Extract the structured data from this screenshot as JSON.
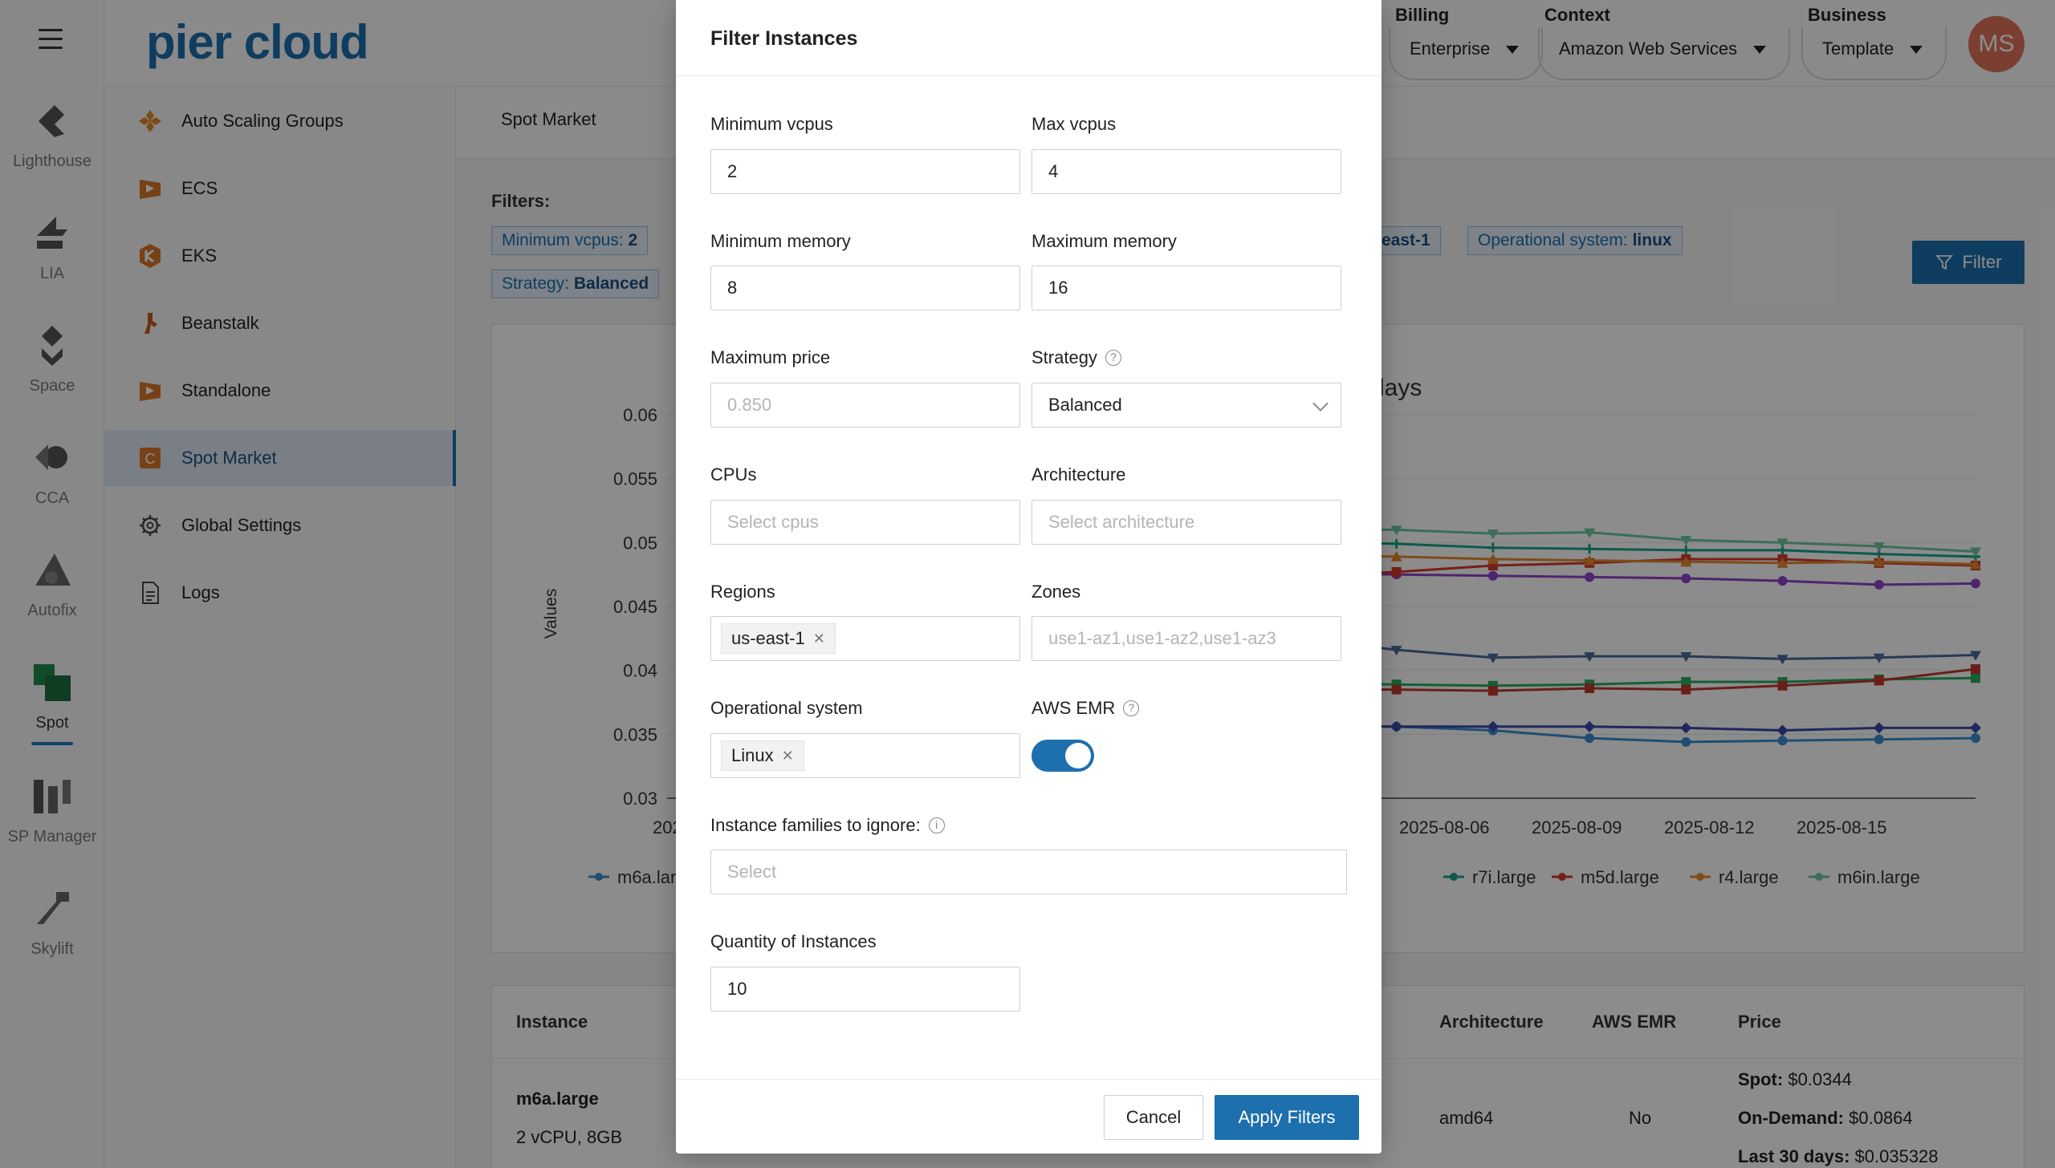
{
  "header": {
    "logo": "pier cloud",
    "billing": {
      "label": "Billing",
      "value": "Enterprise"
    },
    "context": {
      "label": "Context",
      "value": "Amazon Web Services"
    },
    "business": {
      "label": "Business",
      "value": "Template"
    },
    "avatar": "MS"
  },
  "rail": {
    "items": [
      {
        "label": "Lighthouse"
      },
      {
        "label": "LIA"
      },
      {
        "label": "Space"
      },
      {
        "label": "CCA"
      },
      {
        "label": "Autofix"
      },
      {
        "label": "Spot"
      },
      {
        "label": "SP Manager"
      },
      {
        "label": "Skylift"
      }
    ]
  },
  "sidebar": {
    "items": [
      {
        "label": "Auto Scaling Groups"
      },
      {
        "label": "ECS"
      },
      {
        "label": "EKS"
      },
      {
        "label": "Beanstalk"
      },
      {
        "label": "Standalone"
      },
      {
        "label": "Spot Market"
      },
      {
        "label": "Global Settings"
      },
      {
        "label": "Logs"
      }
    ]
  },
  "main": {
    "tab": "Spot Market",
    "filters_label": "Filters:",
    "tags": [
      {
        "key": "Minimum vcpus:",
        "value": "2"
      },
      {
        "key": "",
        "value": "east-1"
      },
      {
        "key": "Operational system:",
        "value": "linux"
      },
      {
        "key": "Strategy:",
        "value": "Balanced"
      }
    ],
    "filter_button": "Filter",
    "chart_title_fragment": "days",
    "table": {
      "headers": [
        "Instance",
        "Architecture",
        "AWS EMR",
        "Price"
      ],
      "row": {
        "instance": "m6a.large",
        "spec": "2 vCPU, 8GB",
        "architecture": "amd64",
        "emr": "No",
        "spot_label": "Spot:",
        "spot_value": "$0.0344",
        "ondemand_label": "On-Demand:",
        "ondemand_value": "$0.0864",
        "last30_label": "Last 30 days:",
        "last30_value": "$0.035328"
      }
    }
  },
  "chart_data": {
    "type": "line",
    "title": "",
    "ylabel": "Values",
    "ylim": [
      0.03,
      0.06
    ],
    "yticks": [
      "0.06",
      "0.055",
      "0.05",
      "0.045",
      "0.04",
      "0.035",
      "0.03"
    ],
    "visible_x_ticks": [
      "2025-0",
      "2025-08-06",
      "2025-08-09",
      "2025-08-12",
      "2025-08-15"
    ],
    "x": [
      "2025-08-04",
      "2025-08-05",
      "2025-08-06",
      "2025-08-07",
      "2025-08-08",
      "2025-08-09",
      "2025-08-10",
      "2025-08-11",
      "2025-08-12",
      "2025-08-13",
      "2025-08-14",
      "2025-08-15",
      "2025-08-16",
      "2025-08-17"
    ],
    "series": [
      {
        "name": "m6a.lar",
        "color": "#3a8fd0",
        "marker": "circle",
        "values": [
          0.0362,
          0.0358,
          0.0357,
          0.0357,
          0.0356,
          0.0356,
          0.0357,
          0.0356,
          0.0353,
          0.0347,
          0.0344,
          0.0345,
          0.0346,
          0.0347
        ]
      },
      {
        "name": "",
        "color": "#3949ab",
        "marker": "diamond",
        "values": [
          0.0355,
          0.0354,
          0.0355,
          0.0356,
          0.0357,
          0.0357,
          0.0356,
          0.0356,
          0.0356,
          0.0356,
          0.0355,
          0.0353,
          0.0355,
          0.0355
        ]
      },
      {
        "name": "",
        "color": "#4a6a9a",
        "marker": "triangle-down",
        "values": [
          0.0423,
          0.0422,
          0.0421,
          0.042,
          0.0424,
          0.0423,
          0.0425,
          0.0416,
          0.041,
          0.0411,
          0.0411,
          0.0409,
          0.041,
          0.0412
        ]
      },
      {
        "name": "",
        "color": "#8e44c9",
        "marker": "circle",
        "values": [
          0.0502,
          0.0501,
          0.0499,
          0.0492,
          0.0486,
          0.0477,
          0.0476,
          0.0475,
          0.0474,
          0.0473,
          0.0472,
          0.047,
          0.0467,
          0.0468
        ]
      },
      {
        "name": "r7i.large",
        "color": "#17a589",
        "marker": "plus",
        "values": [
          0.0512,
          0.0501,
          0.05,
          0.0505,
          0.0507,
          0.0505,
          0.0501,
          0.0499,
          0.0496,
          0.0495,
          0.0494,
          0.0494,
          0.0491,
          0.0489
        ]
      },
      {
        "name": "m5d.large",
        "color": "#d63a2f",
        "marker": "square",
        "values": [
          0.0464,
          0.0465,
          0.0465,
          0.0466,
          0.0467,
          0.0472,
          0.0474,
          0.0477,
          0.0482,
          0.0484,
          0.0487,
          0.0487,
          0.0484,
          0.0482
        ]
      },
      {
        "name": "r4.large",
        "color": "#e6892f",
        "marker": "triangle-up",
        "values": [
          0.05,
          0.0499,
          0.0497,
          0.0496,
          0.0494,
          0.0493,
          0.049,
          0.0489,
          0.0487,
          0.0486,
          0.0485,
          0.0484,
          0.0485,
          0.0483
        ]
      },
      {
        "name": "m6in.large",
        "color": "#6cc6a2",
        "marker": "triangle-down",
        "values": [
          0.0512,
          0.0517,
          0.0511,
          0.0512,
          0.0515,
          0.0511,
          0.051,
          0.051,
          0.0507,
          0.0508,
          0.0502,
          0.05,
          0.0497,
          0.0493
        ]
      },
      {
        "name": "",
        "color": "#27ae60",
        "marker": "square",
        "values": [
          0.0388,
          0.0389,
          0.039,
          0.0389,
          0.039,
          0.0391,
          0.039,
          0.0389,
          0.0388,
          0.0389,
          0.0391,
          0.0391,
          0.0393,
          0.0394
        ]
      },
      {
        "name": "",
        "color": "#c0392b",
        "marker": "square",
        "values": [
          0.0385,
          0.0386,
          0.0386,
          0.0387,
          0.0387,
          0.0386,
          0.0385,
          0.0385,
          0.0384,
          0.0386,
          0.0385,
          0.0388,
          0.0392,
          0.0401
        ]
      }
    ]
  },
  "modal": {
    "title": "Filter Instances",
    "min_vcpus": {
      "label": "Minimum vcpus",
      "value": "2"
    },
    "max_vcpus": {
      "label": "Max vcpus",
      "value": "4"
    },
    "min_memory": {
      "label": "Minimum memory",
      "value": "8"
    },
    "max_memory": {
      "label": "Maximum memory",
      "value": "16"
    },
    "max_price": {
      "label": "Maximum price",
      "placeholder": "0.850"
    },
    "strategy": {
      "label": "Strategy",
      "value": "Balanced"
    },
    "cpus": {
      "label": "CPUs",
      "placeholder": "Select cpus"
    },
    "architecture": {
      "label": "Architecture",
      "placeholder": "Select architecture"
    },
    "regions": {
      "label": "Regions",
      "chip": "us-east-1"
    },
    "zones": {
      "label": "Zones",
      "placeholder": "use1-az1,use1-az2,use1-az3"
    },
    "os": {
      "label": "Operational system",
      "chip": "Linux"
    },
    "emr": {
      "label": "AWS EMR"
    },
    "ignore": {
      "label": "Instance families to ignore:",
      "placeholder": "Select"
    },
    "quantity": {
      "label": "Quantity of Instances",
      "value": "10"
    },
    "cancel": "Cancel",
    "apply": "Apply Filters"
  }
}
